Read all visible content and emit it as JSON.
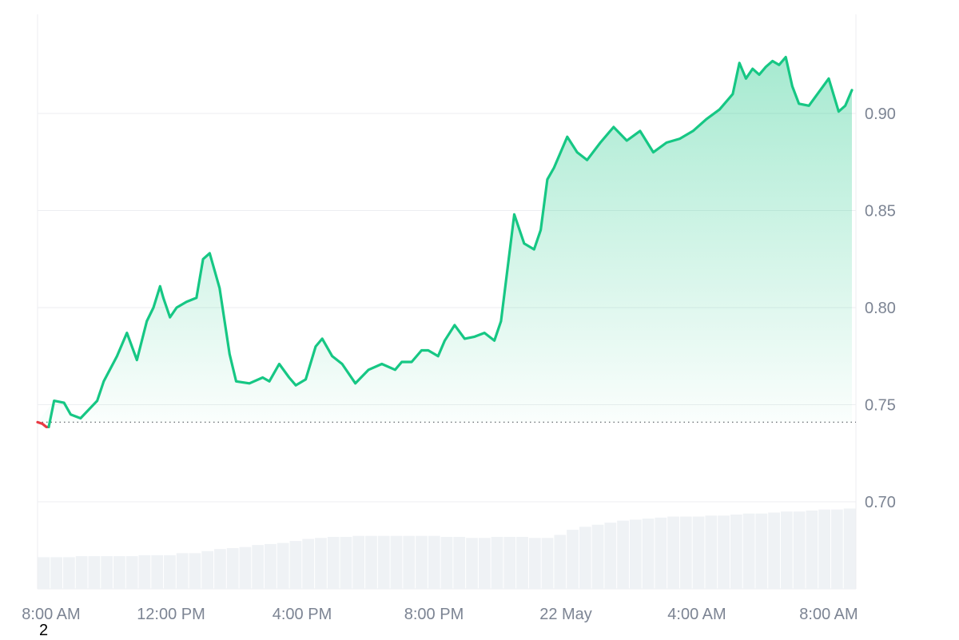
{
  "chart_data": {
    "type": "area",
    "title": "",
    "xlabel": "",
    "ylabel": "",
    "x_ticks": [
      "8:00 AM",
      "12:00 PM",
      "4:00 PM",
      "8:00 PM",
      "22 May",
      "4:00 AM",
      "8:00 AM"
    ],
    "y_ticks": [
      "0.70",
      "0.75",
      "0.80",
      "0.85",
      "0.90"
    ],
    "ylim": [
      0.655,
      0.95
    ],
    "x_range_hours": [
      8.0,
      32.6
    ],
    "baseline": 0.741,
    "grid": true,
    "legend": "none",
    "series": [
      {
        "x": [
          8.0,
          8.5,
          8.8,
          9.0,
          9.3,
          9.8,
          10.0,
          10.4,
          10.7,
          11.0,
          11.3,
          11.5,
          11.7,
          11.8,
          12.0,
          12.2,
          12.5,
          12.8,
          13.0,
          13.2,
          13.5,
          13.8,
          14.0,
          14.4,
          14.8,
          15.0,
          15.3,
          15.6,
          15.8,
          16.1,
          16.4,
          16.6,
          16.9,
          17.2,
          17.6,
          18.0,
          18.4,
          18.8,
          19.0,
          19.3,
          19.6,
          19.8,
          20.1,
          20.3,
          20.6,
          20.9,
          21.2,
          21.5,
          21.8,
          22.0,
          22.4,
          22.7,
          23.0,
          23.2,
          23.4,
          23.6,
          24.0,
          24.3,
          24.6,
          25.0,
          25.4,
          25.8,
          26.2,
          26.6,
          27.0,
          27.4,
          27.8,
          28.2,
          28.6,
          29.0,
          29.2,
          29.4,
          29.6,
          29.8,
          30.0,
          30.2,
          30.4,
          30.6,
          30.8,
          31.0,
          31.3,
          31.6,
          31.9,
          32.2,
          32.4,
          32.6
        ],
        "values": [
          0.741,
          0.752,
          0.751,
          0.745,
          0.743,
          0.752,
          0.762,
          0.775,
          0.787,
          0.773,
          0.793,
          0.8,
          0.811,
          0.805,
          0.795,
          0.8,
          0.803,
          0.805,
          0.825,
          0.828,
          0.81,
          0.776,
          0.762,
          0.761,
          0.764,
          0.762,
          0.771,
          0.764,
          0.76,
          0.763,
          0.78,
          0.784,
          0.775,
          0.771,
          0.761,
          0.768,
          0.771,
          0.768,
          0.772,
          0.772,
          0.778,
          0.778,
          0.775,
          0.783,
          0.791,
          0.784,
          0.785,
          0.787,
          0.783,
          0.793,
          0.848,
          0.833,
          0.83,
          0.84,
          0.866,
          0.872,
          0.888,
          0.88,
          0.876,
          0.885,
          0.893,
          0.886,
          0.891,
          0.88,
          0.885,
          0.887,
          0.891,
          0.897,
          0.902,
          0.91,
          0.926,
          0.918,
          0.923,
          0.92,
          0.924,
          0.927,
          0.925,
          0.929,
          0.914,
          0.905,
          0.904,
          0.911,
          0.918,
          0.901,
          0.904,
          0.912
        ]
      }
    ],
    "volume_bars": [
      0.06,
      0.06,
      0.06,
      0.07,
      0.07,
      0.07,
      0.07,
      0.07,
      0.08,
      0.08,
      0.08,
      0.1,
      0.1,
      0.12,
      0.14,
      0.15,
      0.16,
      0.18,
      0.19,
      0.2,
      0.22,
      0.24,
      0.25,
      0.26,
      0.26,
      0.27,
      0.27,
      0.27,
      0.27,
      0.27,
      0.27,
      0.27,
      0.26,
      0.26,
      0.25,
      0.25,
      0.26,
      0.26,
      0.26,
      0.25,
      0.25,
      0.28,
      0.33,
      0.36,
      0.38,
      0.4,
      0.42,
      0.43,
      0.44,
      0.45,
      0.46,
      0.46,
      0.46,
      0.47,
      0.47,
      0.48,
      0.49,
      0.49,
      0.5,
      0.51,
      0.51,
      0.52,
      0.53,
      0.53,
      0.54
    ],
    "colors": {
      "up_line": "#16c784",
      "down_line": "#ea3943",
      "area_top": "#16c784",
      "grid": "#eceef1",
      "volume": "#eff2f5",
      "axis_text": "#7c8493"
    }
  },
  "footnote": "2"
}
